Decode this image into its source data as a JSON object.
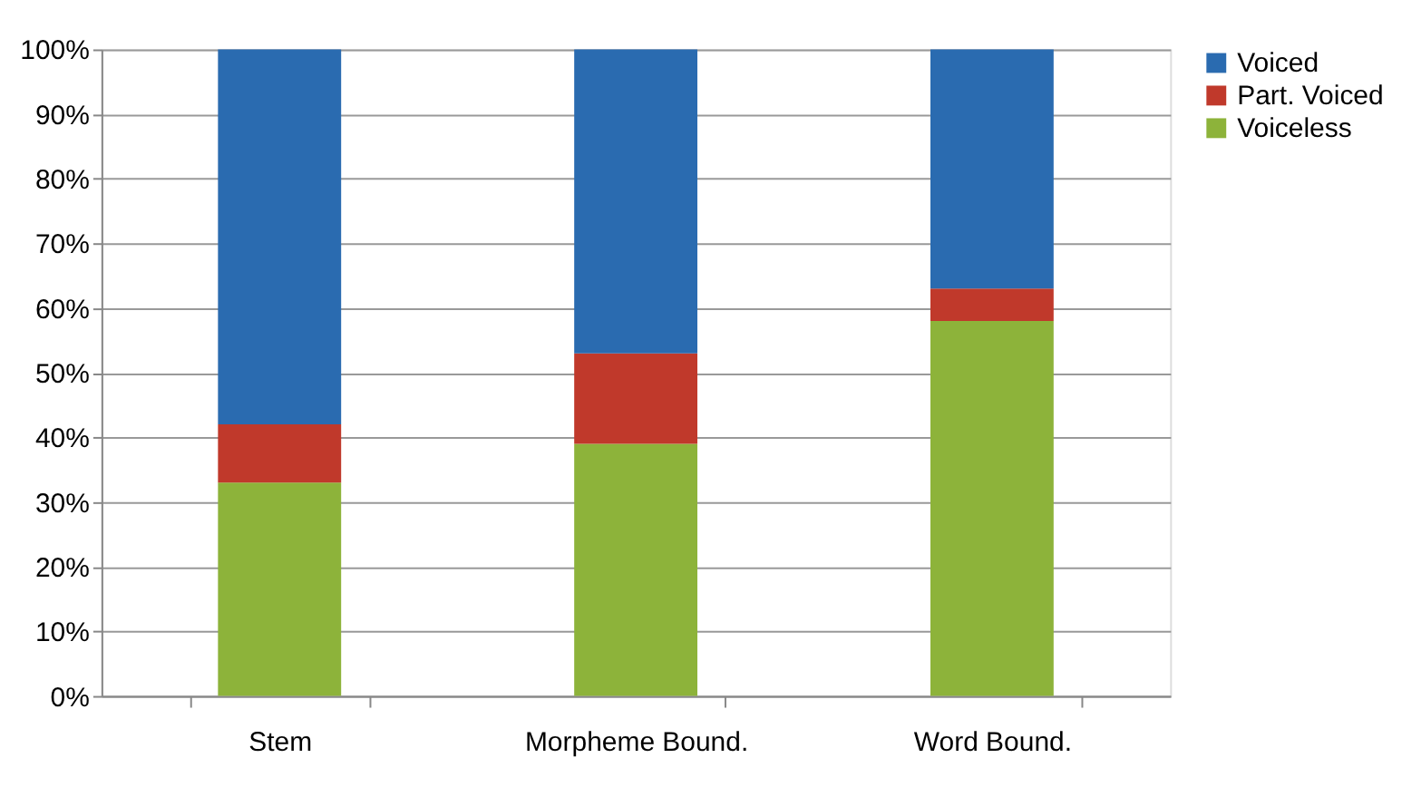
{
  "chart_data": {
    "type": "bar",
    "stacked": true,
    "categories": [
      "Stem",
      "Morpheme Bound.",
      "Word Bound."
    ],
    "series": [
      {
        "name": "Voiceless",
        "color": "#8db33a",
        "values": [
          33,
          39,
          58
        ]
      },
      {
        "name": "Part. Voiced",
        "color": "#c0392b",
        "values": [
          9,
          14,
          5
        ]
      },
      {
        "name": "Voiced",
        "color": "#2a6bb0",
        "values": [
          58,
          47,
          37
        ]
      }
    ],
    "ylim": [
      0,
      100
    ],
    "yticks": [
      {
        "value": 0,
        "label": "0%"
      },
      {
        "value": 10,
        "label": "10%"
      },
      {
        "value": 20,
        "label": "20%"
      },
      {
        "value": 30,
        "label": "30%"
      },
      {
        "value": 40,
        "label": "40%"
      },
      {
        "value": 50,
        "label": "50%"
      },
      {
        "value": 60,
        "label": "60%"
      },
      {
        "value": 70,
        "label": "70%"
      },
      {
        "value": 80,
        "label": "80%"
      },
      {
        "value": 90,
        "label": "90%"
      },
      {
        "value": 100,
        "label": "100%"
      }
    ],
    "grid": "y",
    "legend": "right"
  }
}
